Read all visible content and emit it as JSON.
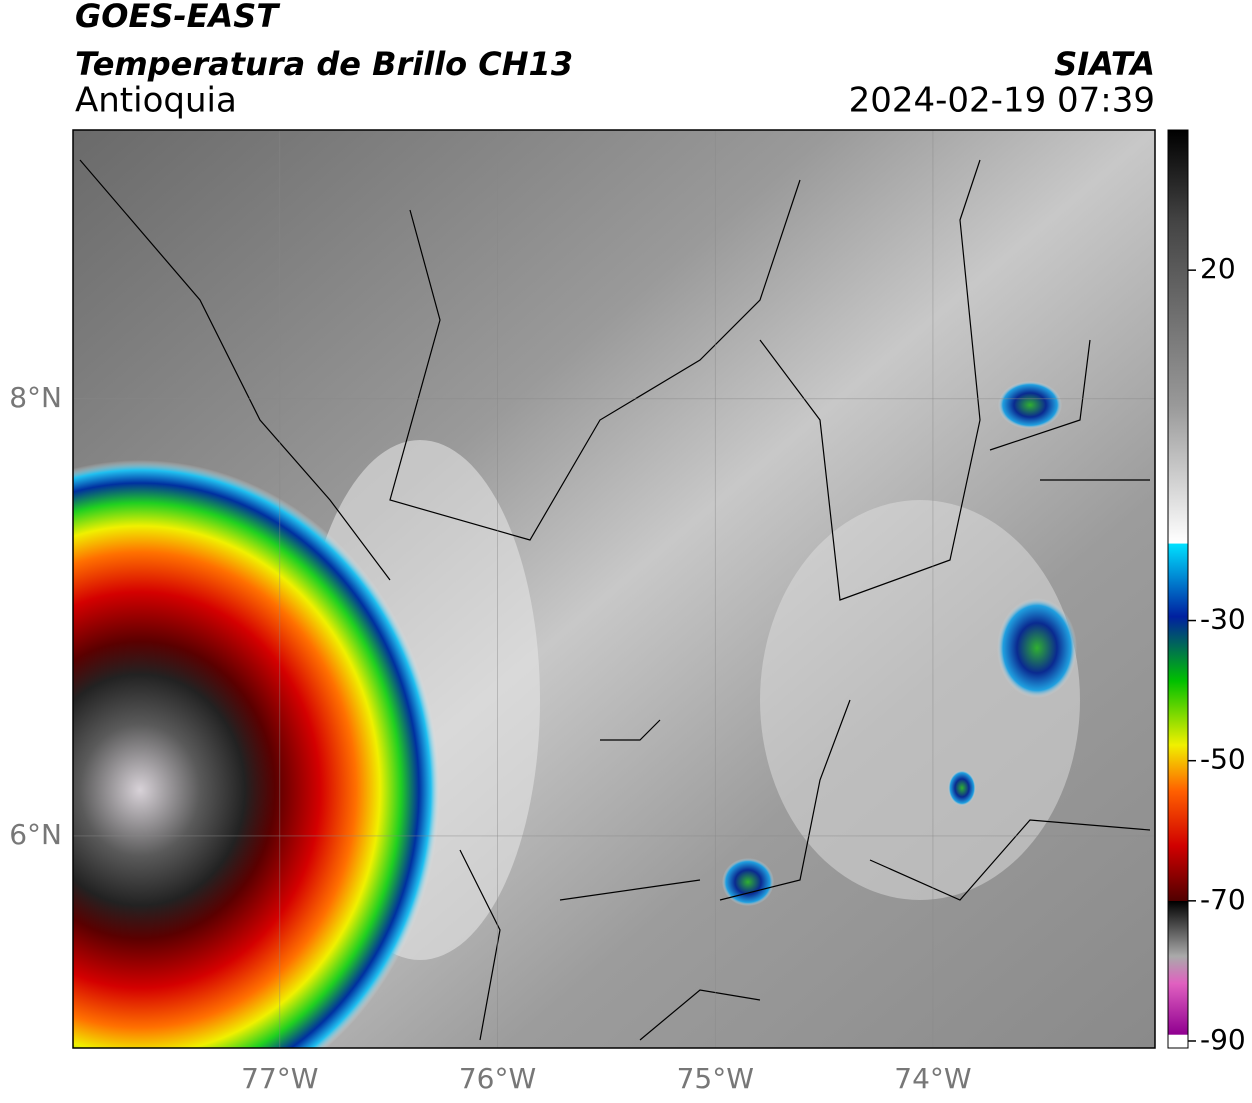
{
  "header": {
    "satellite": "GOES-EAST",
    "product": "Temperatura de Brillo CH13",
    "region": "Antioquia",
    "source": "SIATA",
    "datetime": "2024-02-19 07:39"
  },
  "map": {
    "xlim": [
      -77.95,
      -72.98
    ],
    "ylim": [
      5.03,
      9.23
    ],
    "xticks": [
      {
        "value": -77,
        "label": "77°W"
      },
      {
        "value": -76,
        "label": "76°W"
      },
      {
        "value": -75,
        "label": "75°W"
      },
      {
        "value": -74,
        "label": "74°W"
      }
    ],
    "yticks": [
      {
        "value": 6,
        "label": "6°N"
      },
      {
        "value": 8,
        "label": "8°N"
      }
    ]
  },
  "colorbar": {
    "clim": [
      -91,
      40
    ],
    "ticks": [
      20,
      -30,
      -50,
      -70,
      -90
    ]
  }
}
